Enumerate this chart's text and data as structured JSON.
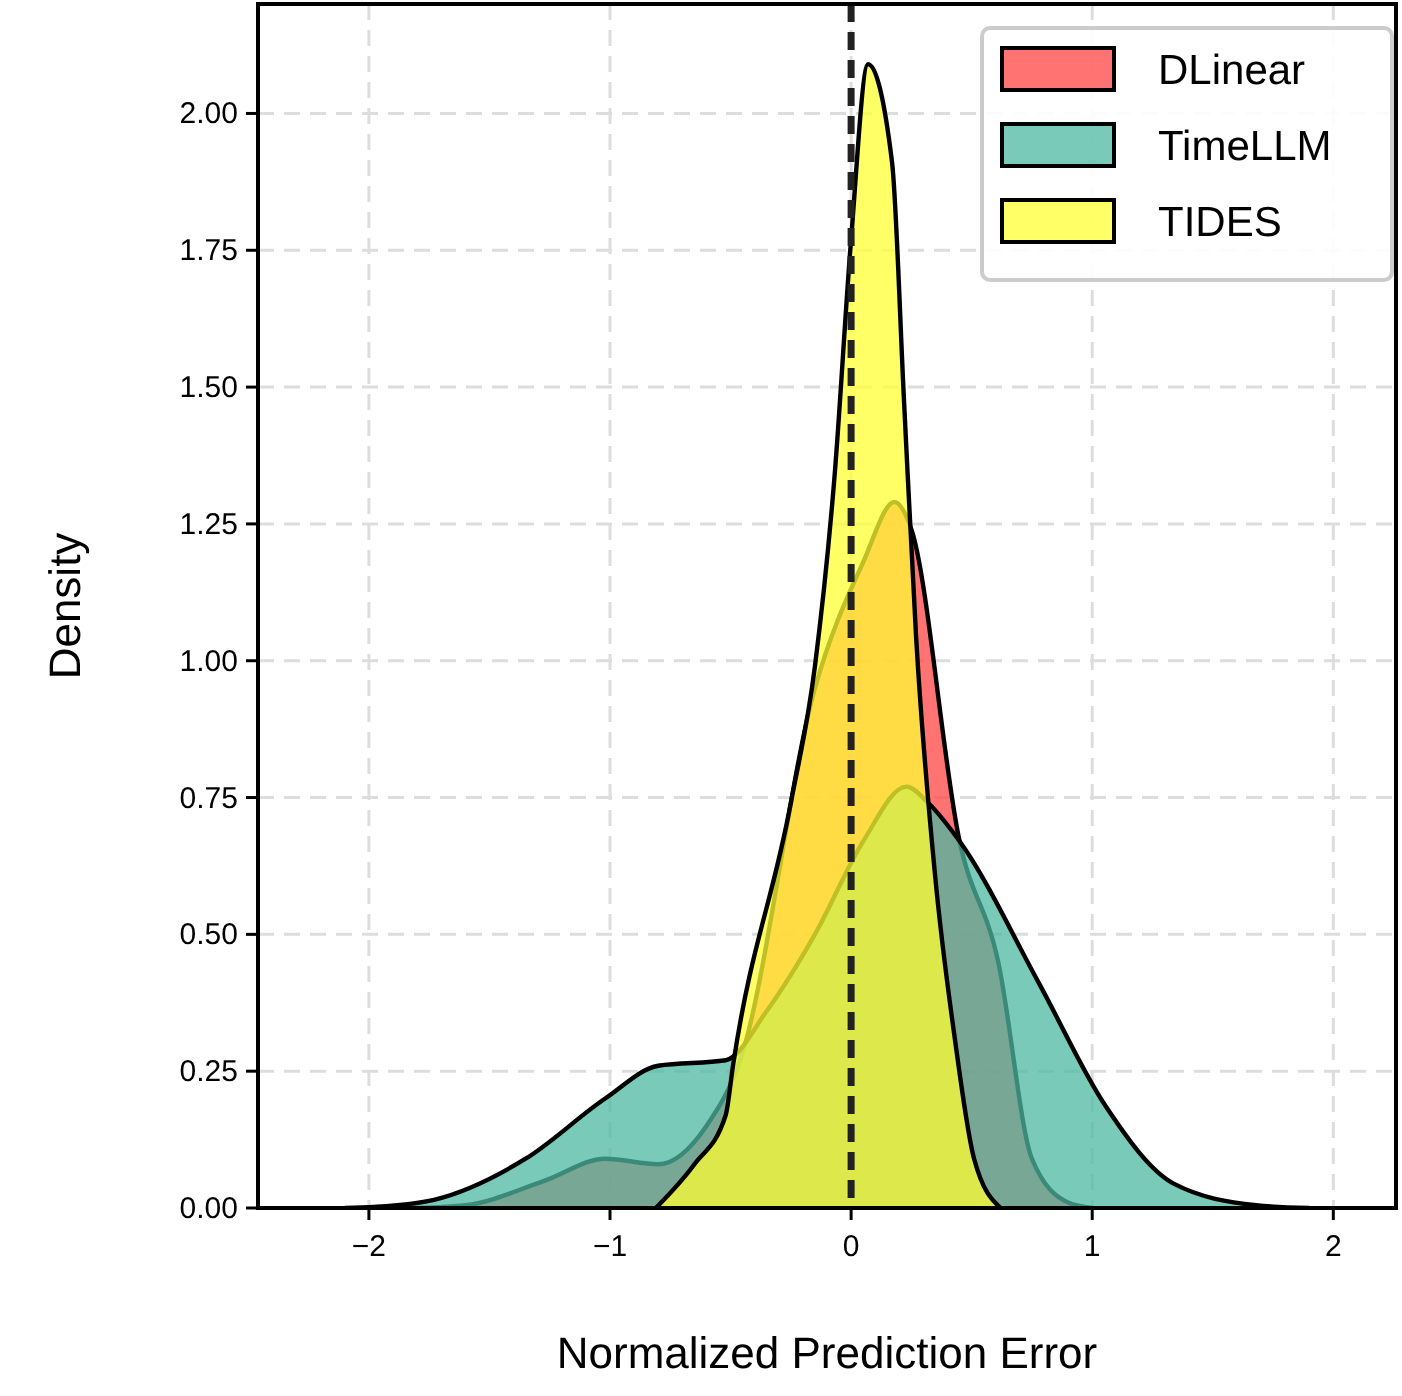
{
  "chart_data": {
    "type": "area",
    "xlabel": "Normalized Prediction Error",
    "ylabel": "Density",
    "xlim": [
      -2.46,
      2.26
    ],
    "ylim": [
      0,
      2.2
    ],
    "xticks": [
      {
        "value": -2,
        "label": "−2"
      },
      {
        "value": -1,
        "label": "−1"
      },
      0,
      1,
      2
    ],
    "yticks": [
      {
        "value": 0,
        "label": "0.00"
      },
      {
        "value": 0.25,
        "label": "0.25"
      },
      {
        "value": 0.5,
        "label": "0.50"
      },
      {
        "value": 0.75,
        "label": "0.75"
      },
      {
        "value": 1,
        "label": "1.00"
      },
      {
        "value": 1.25,
        "label": "1.25"
      },
      {
        "value": 1.5,
        "label": "1.50"
      },
      {
        "value": 1.75,
        "label": "1.75"
      },
      {
        "value": 2,
        "label": "2.00"
      }
    ],
    "grid": true,
    "legend": "top right",
    "ref_lines": [
      {
        "axis": "x",
        "value": 0,
        "color": "#222222",
        "line_style": "dashed"
      }
    ],
    "series": [
      {
        "name": "DLinear",
        "color": "#ff4444",
        "x": [
          -1.8,
          -1.6,
          -1.27,
          -1.02,
          -0.8,
          -0.6,
          -0.46,
          -0.15,
          0.05,
          0.18,
          0.25,
          0.45,
          0.61,
          0.75,
          0.9,
          1.0
        ],
        "values": [
          0,
          0.005,
          0.05,
          0.09,
          0.08,
          0.15,
          0.27,
          0.95,
          1.18,
          1.29,
          1.24,
          0.67,
          0.45,
          0.09,
          0.01,
          0
        ]
      },
      {
        "name": "TimeLLM",
        "color": "#4cb8a0",
        "x": [
          -2.1,
          -1.98,
          -1.73,
          -1.35,
          -1.02,
          -0.8,
          -0.52,
          -0.35,
          -0.15,
          0.05,
          0.23,
          0.32,
          0.45,
          0.78,
          1.05,
          1.34,
          1.68,
          1.9
        ],
        "values": [
          0,
          0.002,
          0.015,
          0.09,
          0.2,
          0.26,
          0.27,
          0.36,
          0.5,
          0.67,
          0.77,
          0.74,
          0.67,
          0.41,
          0.19,
          0.044,
          0.005,
          0
        ]
      },
      {
        "name": "TIDES",
        "color": "#ffff33",
        "x": [
          -0.81,
          -0.65,
          -0.52,
          -0.49,
          -0.25,
          -0.15,
          -0.07,
          0,
          0.07,
          0.17,
          0.22,
          0.27,
          0.35,
          0.43,
          0.51,
          0.62
        ],
        "values": [
          0,
          0.08,
          0.17,
          0.26,
          0.74,
          0.99,
          1.33,
          1.77,
          2.09,
          1.91,
          1.47,
          1.04,
          0.6,
          0.31,
          0.09,
          0
        ]
      }
    ]
  }
}
